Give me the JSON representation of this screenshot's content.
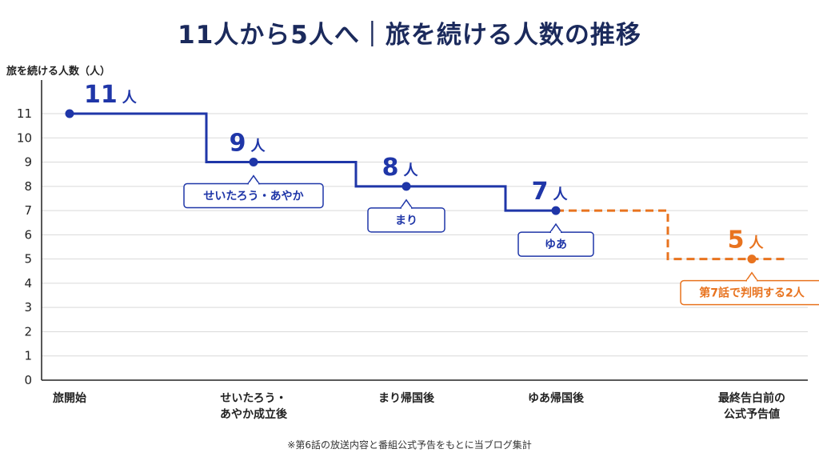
{
  "page": {
    "title": "11人から5人へ｜旅を続ける人数の推移",
    "note": "※第6話の放送内容と番組公式予告をもとに当ブログ集計"
  },
  "colors": {
    "actual": "#1f36a8",
    "forecast": "#e8731f",
    "grid": "#d9d9d9",
    "axis": "#222222",
    "title": "#1b2a5c"
  },
  "chart_data": {
    "type": "line",
    "step": true,
    "ylabel": "旅を続ける人数（人）",
    "ylim": [
      0,
      11
    ],
    "yticks": [
      "0",
      "1",
      "2",
      "3",
      "4",
      "5",
      "6",
      "7",
      "8",
      "9",
      "10",
      "11"
    ],
    "categories": [
      "旅開始",
      "せいたろう・\nあやか成立後",
      "まり帰国後",
      "ゆあ帰国後",
      "最終告白前の\n公式予告値"
    ],
    "values": [
      11,
      9,
      8,
      7,
      5
    ],
    "value_labels": [
      "11",
      "9",
      "8",
      "7",
      "5"
    ],
    "unit": "人",
    "grid": true,
    "series": [
      {
        "style": "solid",
        "color": "#1f36a8",
        "from": 0,
        "to": 3
      },
      {
        "style": "dashed",
        "color": "#e8731f",
        "from": 3,
        "to": 4
      }
    ],
    "callouts": [
      {
        "index": 1,
        "text": "せいたろう・あやか",
        "color": "#1f36a8"
      },
      {
        "index": 2,
        "text": "まり",
        "color": "#1f36a8"
      },
      {
        "index": 3,
        "text": "ゆあ",
        "color": "#1f36a8"
      },
      {
        "index": 4,
        "text": "第7話で判明する2人",
        "color": "#e8731f"
      }
    ]
  }
}
